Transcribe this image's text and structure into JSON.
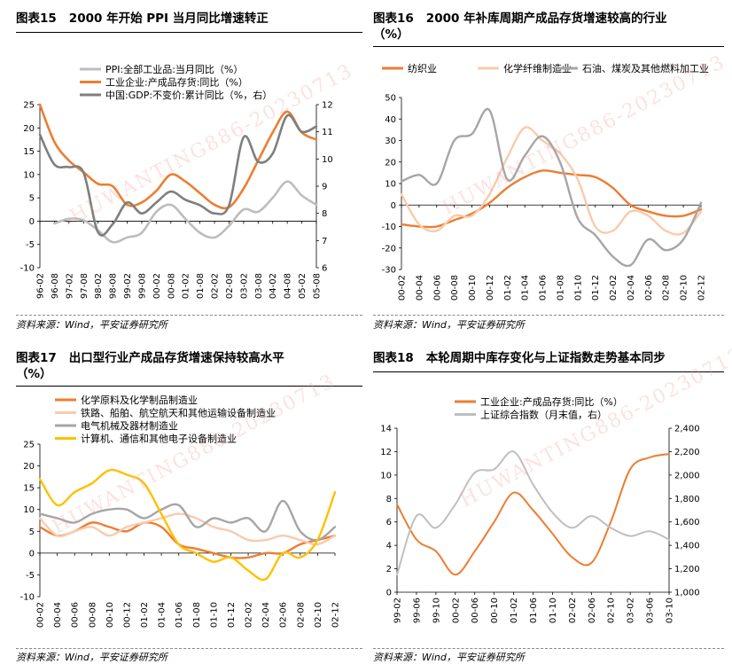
{
  "panels": [
    {
      "id": "p15",
      "num": "图表15",
      "title_lines": [
        "2000 年开始 PPI 当月同比增速转正"
      ],
      "source": "资料来源：Wind，平安证券研究所"
    },
    {
      "id": "p16",
      "num": "图表16",
      "title_lines": [
        "2000 年补库周期产成品存货增速较高的行业",
        "（%）"
      ],
      "source": "资料来源：Wind，平安证券研究所"
    },
    {
      "id": "p17",
      "num": "图表17",
      "title_lines": [
        "出口型行业产成品存货增速保持较高水平",
        "（%）"
      ],
      "source": "资料来源：Wind，平安证券研究所"
    },
    {
      "id": "p18",
      "num": "图表18",
      "title_lines": [
        "本轮周期中库存变化与上证指数走势基本同步"
      ],
      "source": "资料来源：Wind，平安证券研究所"
    }
  ],
  "watermark_text": "HUWANTING886-20230713",
  "chart_data": [
    {
      "type": "line",
      "x": [
        "96-02",
        "96-08",
        "97-02",
        "97-08",
        "98-02",
        "98-08",
        "99-02",
        "99-08",
        "00-02",
        "00-08",
        "01-02",
        "01-08",
        "02-02",
        "02-08",
        "03-02",
        "03-08",
        "04-02",
        "04-08",
        "05-02",
        "05-08"
      ],
      "legend_position": "top",
      "ylim": [
        -10,
        25
      ],
      "y_ticks": [
        -10,
        -5,
        0,
        5,
        10,
        15,
        20,
        25
      ],
      "y2lim": [
        6,
        12
      ],
      "y2_ticks": [
        6,
        7,
        8,
        9,
        10,
        11,
        12
      ],
      "series": [
        {
          "name": "PPI:全部工业品:当月同比（%）",
          "color": "#bdbdbd",
          "axis": "left",
          "values": [
            null,
            -0.5,
            0.5,
            0.2,
            -2,
            -4.5,
            -3.5,
            -2.5,
            2,
            3.5,
            0.5,
            -2.5,
            -3.5,
            -1,
            2.5,
            2,
            5,
            8.5,
            5.5,
            3.5
          ]
        },
        {
          "name": "工业企业:产成品存货:同比（%）",
          "color": "#ed7d31",
          "axis": "left",
          "values": [
            25,
            17,
            13,
            10.5,
            8,
            7.5,
            3.5,
            4,
            6.5,
            10,
            8.5,
            6,
            3.5,
            3,
            7,
            13,
            19,
            23.5,
            19,
            17.5
          ]
        },
        {
          "name": "中国:GDP:不变价:累计同比（%，右）",
          "color": "#7f7f7f",
          "axis": "right",
          "values": [
            10.9,
            9.8,
            9.7,
            9.5,
            7.3,
            7.6,
            8.4,
            8.0,
            8.4,
            8.8,
            8.5,
            8.3,
            8.0,
            8.3,
            10.8,
            9.9,
            10.2,
            11.6,
            11.0,
            11.2
          ]
        }
      ]
    },
    {
      "type": "line",
      "x": [
        "00-02",
        "00-04",
        "00-06",
        "00-08",
        "00-10",
        "00-12",
        "01-02",
        "01-04",
        "01-06",
        "01-08",
        "01-10",
        "01-12",
        "02-02",
        "02-04",
        "02-06",
        "02-08",
        "02-10",
        "02-12"
      ],
      "legend_position": "top",
      "ylim": [
        -30,
        50
      ],
      "y_ticks": [
        -30,
        -20,
        -10,
        0,
        10,
        20,
        30,
        40,
        50
      ],
      "series": [
        {
          "name": "纺织业",
          "color": "#ed7d31",
          "values": [
            -9,
            -10,
            -10,
            -7,
            -4,
            1,
            8,
            13,
            16,
            15,
            14,
            13,
            8,
            0,
            -3,
            -5,
            -5,
            -2
          ]
        },
        {
          "name": "化学纤维制造业",
          "color": "#f8cbad",
          "values": [
            5,
            -9,
            -12,
            -5,
            -5,
            5,
            22,
            36,
            30,
            24,
            12,
            -10,
            -12,
            -3,
            -5,
            -12,
            -13,
            -3
          ]
        },
        {
          "name": "石油、煤炭及其他燃料加工业",
          "color": "#a6a6a6",
          "values": [
            11,
            14,
            10,
            30,
            33,
            44,
            12,
            23,
            32,
            20,
            -6,
            -14,
            -24,
            -28,
            -16,
            -21,
            -16,
            1
          ]
        }
      ]
    },
    {
      "type": "line",
      "x": [
        "00-02",
        "00-04",
        "00-06",
        "00-08",
        "00-10",
        "00-12",
        "01-02",
        "01-04",
        "01-06",
        "01-08",
        "01-10",
        "01-12",
        "02-02",
        "02-04",
        "02-06",
        "02-08",
        "02-10",
        "02-12"
      ],
      "legend_position": "top",
      "ylim": [
        -10,
        25
      ],
      "y_ticks": [
        -10,
        -5,
        0,
        5,
        10,
        15,
        20,
        25
      ],
      "series": [
        {
          "name": "化学原料及化学制品制造业",
          "color": "#ed7d31",
          "values": [
            6,
            4,
            5,
            7,
            6,
            5,
            7,
            6,
            2,
            1,
            0,
            -1,
            -1,
            0,
            0,
            2,
            3,
            4
          ]
        },
        {
          "name": "铁路、船舶、航空航天和其他运输设备制造业",
          "color": "#f8cbad",
          "values": [
            8,
            4,
            5,
            6,
            4,
            6,
            7,
            8,
            9,
            8,
            6,
            5,
            3,
            3,
            4,
            3,
            2,
            4
          ]
        },
        {
          "name": "电气机械及器材制造业",
          "color": "#a6a6a6",
          "values": [
            9,
            8,
            7,
            9,
            10,
            10,
            8,
            10,
            11,
            6,
            8,
            7,
            8,
            5,
            12,
            5,
            3,
            6
          ]
        },
        {
          "name": "计算机、通信和其他电子设备制造业",
          "color": "#ffc000",
          "values": [
            17,
            11,
            14,
            16,
            19,
            18,
            16,
            9,
            2,
            0,
            -2,
            -1,
            -4,
            -6,
            0,
            -1,
            3,
            14
          ]
        }
      ]
    },
    {
      "type": "line",
      "x": [
        "99-02",
        "99-06",
        "99-10",
        "00-02",
        "00-06",
        "00-10",
        "01-02",
        "01-06",
        "01-10",
        "02-02",
        "02-06",
        "02-10",
        "03-02",
        "03-06",
        "03-10"
      ],
      "legend_position": "top",
      "ylim": [
        0,
        14
      ],
      "y_ticks": [
        0,
        2,
        4,
        6,
        8,
        10,
        12,
        14
      ],
      "y2lim": [
        1000,
        2400
      ],
      "y2_ticks": [
        "1,000",
        "1,200",
        "1,400",
        "1,600",
        "1,800",
        "2,000",
        "2,200",
        "2,400"
      ],
      "series": [
        {
          "name": "工业企业:产成品存货:同比（%）",
          "color": "#ed7d31",
          "axis": "left",
          "values": [
            7.5,
            4.5,
            3.5,
            1.5,
            3.5,
            6,
            8.5,
            7,
            5,
            3,
            2.5,
            6,
            10.5,
            11.5,
            11.8
          ]
        },
        {
          "name": "上证综合指数（月末值，右）",
          "color": "#bfbfbf",
          "axis": "right",
          "values": [
            1150,
            1650,
            1550,
            1750,
            2020,
            2050,
            2200,
            1920,
            1680,
            1550,
            1650,
            1550,
            1480,
            1520,
            1450
          ]
        }
      ]
    }
  ]
}
